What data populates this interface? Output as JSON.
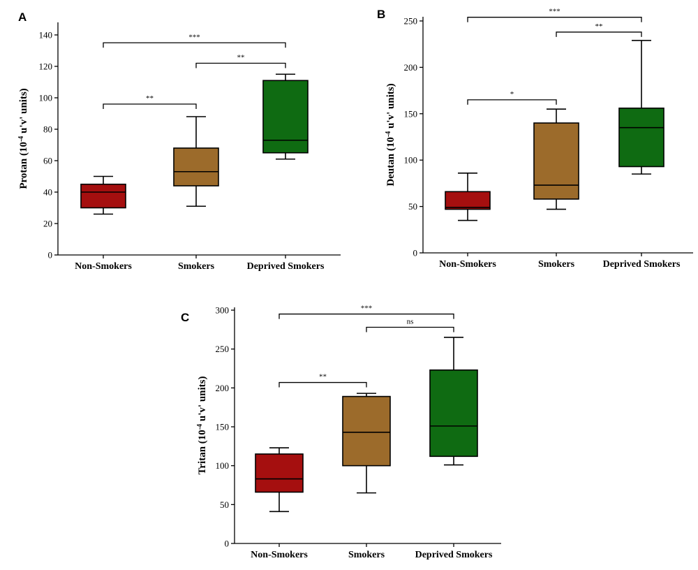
{
  "chart_data": [
    {
      "panel": "A",
      "type": "box",
      "ylabel": "Protan (10<sup>-4</sup> u'v' units)",
      "ylabel_prefix": "Protan (10",
      "ylabel_exp": "-4",
      "ylabel_suffix": " u'v' units)",
      "ylim": [
        0,
        150
      ],
      "yticks": [
        0,
        20,
        40,
        60,
        80,
        100,
        120,
        140
      ],
      "categories": [
        "Non-Smokers",
        "Smokers",
        "Deprived Smokers"
      ],
      "colors": [
        "#a50f0f",
        "#9c6b2b",
        "#0f6b12"
      ],
      "boxes": [
        {
          "min": 26,
          "q1": 30,
          "median": 40,
          "q3": 45,
          "max": 50
        },
        {
          "min": 31,
          "q1": 44,
          "median": 53,
          "q3": 68,
          "max": 88
        },
        {
          "min": 61,
          "q1": 65,
          "median": 73,
          "q3": 111,
          "max": 115
        }
      ],
      "comparisons": [
        {
          "from": 0,
          "to": 1,
          "y": 96,
          "label": "**"
        },
        {
          "from": 1,
          "to": 2,
          "y": 122,
          "label": "**"
        },
        {
          "from": 0,
          "to": 2,
          "y": 135,
          "label": "***"
        }
      ]
    },
    {
      "panel": "B",
      "type": "box",
      "ylabel_prefix": "Deutan (10",
      "ylabel_exp": "-4",
      "ylabel_suffix": " u'v' units)",
      "ylim": [
        0,
        250
      ],
      "yticks": [
        0,
        50,
        100,
        150,
        200,
        250
      ],
      "categories": [
        "Non-Smokers",
        "Smokers",
        "Deprived Smokers"
      ],
      "colors": [
        "#a50f0f",
        "#9c6b2b",
        "#0f6b12"
      ],
      "boxes": [
        {
          "min": 35,
          "q1": 47,
          "median": 49,
          "q3": 66,
          "max": 86
        },
        {
          "min": 47,
          "q1": 58,
          "median": 73,
          "q3": 140,
          "max": 155
        },
        {
          "min": 85,
          "q1": 93,
          "median": 135,
          "q3": 156,
          "max": 229
        }
      ],
      "comparisons": [
        {
          "from": 0,
          "to": 1,
          "y": 165,
          "label": "*"
        },
        {
          "from": 1,
          "to": 2,
          "y": 238,
          "label": "**"
        },
        {
          "from": 0,
          "to": 2,
          "y": 254,
          "label": "***"
        }
      ]
    },
    {
      "panel": "C",
      "type": "box",
      "ylabel_prefix": "Tritan (10",
      "ylabel_exp": "-4",
      "ylabel_suffix": " u'v' units)",
      "ylim": [
        0,
        300
      ],
      "yticks": [
        0,
        50,
        100,
        150,
        200,
        250,
        300
      ],
      "categories": [
        "Non-Smokers",
        "Smokers",
        "Deprived Smokers"
      ],
      "colors": [
        "#a50f0f",
        "#9c6b2b",
        "#0f6b12"
      ],
      "boxes": [
        {
          "min": 41,
          "q1": 66,
          "median": 83,
          "q3": 115,
          "max": 123
        },
        {
          "min": 65,
          "q1": 100,
          "median": 143,
          "q3": 189,
          "max": 193
        },
        {
          "min": 101,
          "q1": 112,
          "median": 151,
          "q3": 223,
          "max": 265
        }
      ],
      "comparisons": [
        {
          "from": 0,
          "to": 1,
          "y": 207,
          "label": "**"
        },
        {
          "from": 1,
          "to": 2,
          "y": 278,
          "label": "ns"
        },
        {
          "from": 0,
          "to": 2,
          "y": 295,
          "label": "***"
        }
      ]
    }
  ]
}
